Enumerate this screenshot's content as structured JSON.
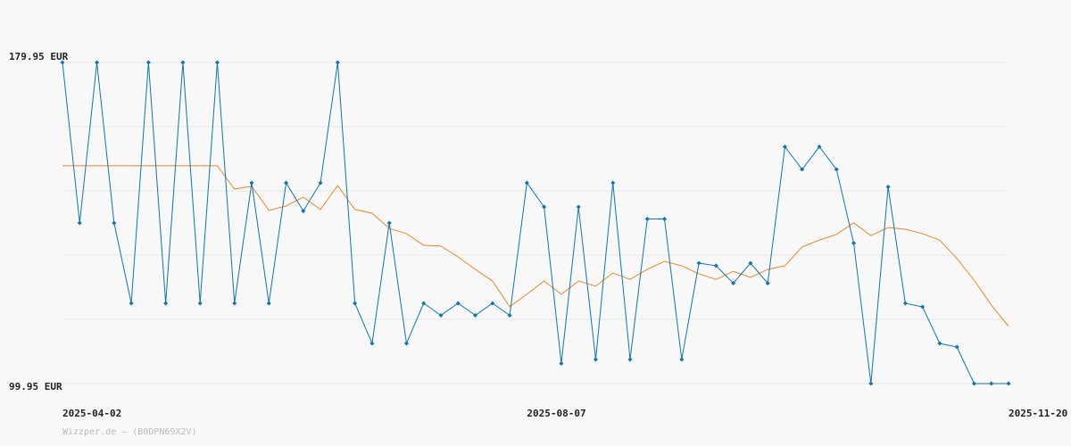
{
  "chart_data": {
    "type": "line",
    "categories": [
      "2025-04-02",
      null,
      null,
      null,
      null,
      null,
      null,
      null,
      null,
      null,
      null,
      null,
      null,
      null,
      null,
      null,
      null,
      null,
      null,
      null,
      null,
      null,
      null,
      null,
      null,
      null,
      null,
      "2025-08-07",
      null,
      null,
      null,
      null,
      null,
      null,
      null,
      null,
      null,
      null,
      null,
      null,
      null,
      null,
      null,
      null,
      null,
      null,
      null,
      null,
      null,
      null,
      null,
      null,
      null,
      null,
      null,
      "2025-11-20"
    ],
    "series": [
      {
        "color": "#0f74b5",
        "markers": true,
        "values": [
          179.95,
          139.95,
          179.95,
          139.95,
          119.95,
          179.95,
          119.95,
          179.95,
          119.95,
          179.95,
          119.95,
          149.95,
          119.95,
          149.95,
          142.95,
          149.95,
          179.95,
          119.95,
          109.95,
          139.95,
          109.95,
          119.95,
          116.95,
          119.95,
          116.95,
          119.95,
          116.95,
          149.95,
          143.95,
          104.95,
          143.95,
          105.95,
          149.95,
          105.95,
          140.95,
          140.95,
          105.95,
          129.95,
          129.3,
          124.95,
          129.95,
          124.95,
          158.95,
          153.3,
          158.95,
          153.3,
          134.95,
          99.95,
          148.95,
          119.95,
          119.06,
          109.95,
          109.06,
          99.95,
          99.95,
          99.95
        ]
      },
      {
        "color": "#e8892b",
        "markers": false,
        "values": [
          154.2,
          154.2,
          154.2,
          154.2,
          154.2,
          154.2,
          154.2,
          154.2,
          154.2,
          154.2,
          148.4,
          149.1,
          143.1,
          144.2,
          146.4,
          143.3,
          149.3,
          143.3,
          142.4,
          138.6,
          137.3,
          134.4,
          134.2,
          131.5,
          128.4,
          125.5,
          119.1,
          122.2,
          125.5,
          122.2,
          125.5,
          124.2,
          127.5,
          125.9,
          128.4,
          130.4,
          129.3,
          127.3,
          125.9,
          127.9,
          126.4,
          128.4,
          129.3,
          134.0,
          135.7,
          137.1,
          140.0,
          136.8,
          138.8,
          138.4,
          137.3,
          135.7,
          131.1,
          125.7,
          119.5,
          114.2
        ]
      }
    ],
    "ylim": [
      99.95,
      179.95
    ],
    "yticks": [
      {
        "value": 179.95,
        "label": "179.95 EUR"
      },
      {
        "value": 99.95,
        "label": "99.95 EUR"
      }
    ],
    "ygrid": [
      179.95,
      163.95,
      147.95,
      131.95,
      115.95,
      99.95
    ],
    "footer": "Wizzper.de – (B0DPN69X2V)"
  }
}
